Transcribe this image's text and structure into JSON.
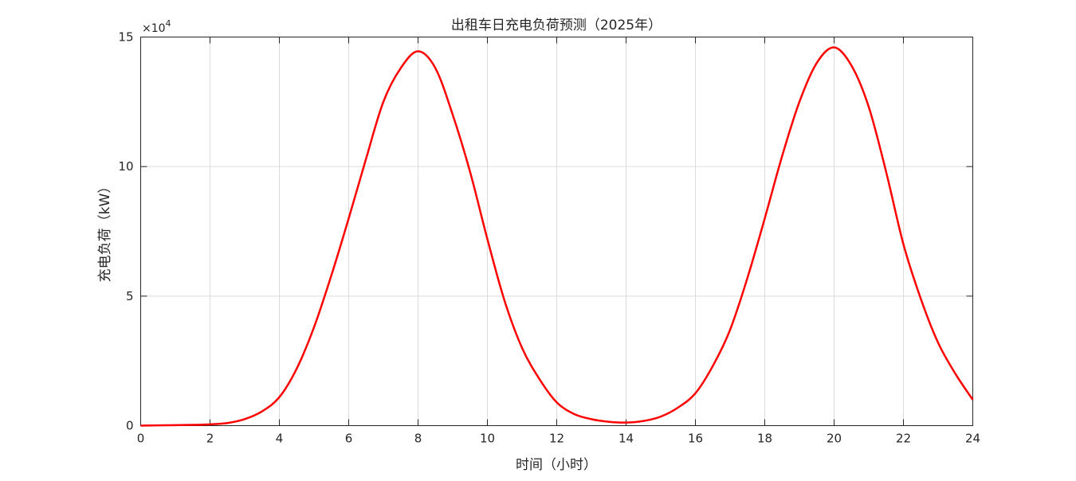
{
  "chart_data": {
    "type": "line",
    "title": "出租车日充电负荷预测（2025年）",
    "xlabel": "时间（小时）",
    "ylabel": "充电负荷（kW）",
    "y_exponent_label": "×10",
    "y_exponent_power": "4",
    "xlim": [
      0,
      24
    ],
    "ylim": [
      0,
      15
    ],
    "xticks": [
      "0",
      "2",
      "4",
      "6",
      "8",
      "10",
      "12",
      "14",
      "16",
      "18",
      "20",
      "22",
      "24"
    ],
    "yticks": [
      "0",
      "5",
      "10",
      "15"
    ],
    "grid": true,
    "series_color": "#ff0000",
    "series": [
      {
        "x": [
          0,
          0.5,
          1,
          1.5,
          2,
          2.5,
          3,
          3.5,
          4,
          4.5,
          5,
          5.5,
          6,
          6.5,
          7,
          7.5,
          8,
          8.5,
          9,
          9.5,
          10,
          10.5,
          11,
          11.5,
          12,
          12.5,
          13,
          13.5,
          14,
          14.5,
          15,
          15.5,
          16,
          16.5,
          17,
          17.5,
          18,
          18.5,
          19,
          19.5,
          20,
          20.5,
          21,
          21.5,
          22,
          22.5,
          23,
          23.5,
          24
        ],
        "y": [
          0,
          0.01,
          0.02,
          0.03,
          0.05,
          0.1,
          0.25,
          0.55,
          1.1,
          2.2,
          3.8,
          5.8,
          8.0,
          10.3,
          12.5,
          13.8,
          14.45,
          13.8,
          12.0,
          9.8,
          7.2,
          4.8,
          3.0,
          1.8,
          0.9,
          0.45,
          0.25,
          0.15,
          0.12,
          0.18,
          0.35,
          0.7,
          1.25,
          2.3,
          3.7,
          5.7,
          8.0,
          10.4,
          12.5,
          14.0,
          14.6,
          13.9,
          12.3,
          9.8,
          7.0,
          4.9,
          3.2,
          2.0,
          1.0
        ]
      }
    ]
  }
}
